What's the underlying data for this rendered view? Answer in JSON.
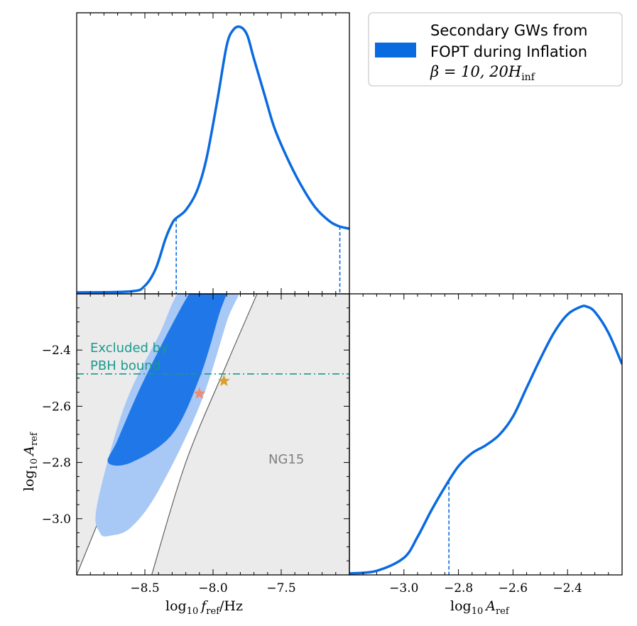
{
  "chart_data": [
    {
      "panel": "top-left",
      "type": "line",
      "title": "",
      "xlabel": "",
      "ylabel": "",
      "xlim": [
        -9.0,
        -7.0
      ],
      "color": "#0a6ae0",
      "description_series": "1D marginal posterior of log10 f_ref",
      "x": [
        -9.0,
        -8.6,
        -8.5,
        -8.42,
        -8.35,
        -8.3,
        -8.27,
        -8.2,
        -8.12,
        -8.05,
        -7.97,
        -7.9,
        -7.85,
        -7.8,
        -7.75,
        -7.7,
        -7.62,
        -7.55,
        -7.45,
        -7.35,
        -7.25,
        -7.15,
        -7.08,
        -7.0
      ],
      "y": [
        0.0,
        0.004,
        0.025,
        0.09,
        0.2,
        0.26,
        0.28,
        0.31,
        0.38,
        0.5,
        0.72,
        0.93,
        0.99,
        1.0,
        0.97,
        0.88,
        0.74,
        0.62,
        0.5,
        0.4,
        0.32,
        0.27,
        0.25,
        0.24
      ],
      "bounds_dashed": [
        -8.27,
        -7.07
      ]
    },
    {
      "panel": "bottom-left",
      "type": "contour",
      "xlabel": "log10 f_ref/Hz",
      "ylabel": "log10 A_ref",
      "xlim": [
        -9.0,
        -7.0
      ],
      "ylim": [
        -3.2,
        -2.2
      ],
      "xticks": [
        -8.5,
        -8.0,
        -7.5
      ],
      "xtick_labels": [
        "−8.5",
        "−8.0",
        "−7.5"
      ],
      "yticks": [
        -3.0,
        -2.8,
        -2.6,
        -2.4
      ],
      "ytick_labels": [
        "−3.0",
        "−2.8",
        "−2.6",
        "−2.4"
      ],
      "contours": [
        {
          "level": "68%",
          "color": "#1f77e8",
          "points": [
            [
              -8.77,
              -2.8
            ],
            [
              -8.7,
              -2.72
            ],
            [
              -8.5,
              -2.5
            ],
            [
              -8.2,
              -2.22
            ],
            [
              -8.1,
              -2.17
            ],
            [
              -7.9,
              -2.17
            ],
            [
              -7.96,
              -2.28
            ],
            [
              -8.1,
              -2.5
            ],
            [
              -8.3,
              -2.7
            ],
            [
              -8.6,
              -2.8
            ]
          ]
        },
        {
          "level": "95%",
          "color": "#a8c8f5",
          "points": [
            [
              -8.83,
              -3.05
            ],
            [
              -8.85,
              -2.95
            ],
            [
              -8.65,
              -2.6
            ],
            [
              -8.4,
              -2.35
            ],
            [
              -8.2,
              -2.17
            ],
            [
              -7.82,
              -2.17
            ],
            [
              -7.9,
              -2.3
            ],
            [
              -8.1,
              -2.6
            ],
            [
              -8.4,
              -2.9
            ],
            [
              -8.6,
              -3.03
            ],
            [
              -8.75,
              -3.06
            ]
          ]
        }
      ],
      "ng15_band": {
        "label": "NG15",
        "color": "#ebebeb",
        "upper_line": [
          [
            -9.0,
            -3.2
          ],
          [
            -8.5,
            -2.6
          ],
          [
            -8.27,
            -2.3
          ],
          [
            -8.06,
            -2.17
          ]
        ],
        "lower_line": [
          [
            -8.45,
            -3.2
          ],
          [
            -8.2,
            -2.8
          ],
          [
            -7.9,
            -2.45
          ],
          [
            -7.65,
            -2.17
          ]
        ]
      },
      "pbh_bound": {
        "y": -2.485,
        "label": "Excluded by PBH bound",
        "color": "#1a9a8e"
      },
      "stars": [
        {
          "x": -8.1,
          "y": -2.555,
          "color": "#f4896b"
        },
        {
          "x": -7.92,
          "y": -2.51,
          "color": "#d9a22a"
        }
      ],
      "ng15_label": "NG15",
      "pbh_label_line1": "Excluded by",
      "pbh_label_line2": "PBH bound"
    },
    {
      "panel": "bottom-right",
      "type": "line",
      "xlabel": "log10 A_ref",
      "xlim": [
        -3.2,
        -2.2
      ],
      "xticks": [
        -3.0,
        -2.8,
        -2.6,
        -2.4
      ],
      "xtick_labels": [
        "−3.0",
        "−2.8",
        "−2.6",
        "−2.4"
      ],
      "color": "#0a6ae0",
      "x": [
        -3.2,
        -3.1,
        -3.0,
        -2.95,
        -2.9,
        -2.85,
        -2.8,
        -2.75,
        -2.7,
        -2.65,
        -2.6,
        -2.55,
        -2.5,
        -2.45,
        -2.4,
        -2.35,
        -2.33,
        -2.3,
        -2.25,
        -2.2
      ],
      "y": [
        0.0,
        0.01,
        0.06,
        0.14,
        0.24,
        0.33,
        0.41,
        0.46,
        0.49,
        0.53,
        0.6,
        0.71,
        0.82,
        0.92,
        0.99,
        1.02,
        1.02,
        1.0,
        0.92,
        0.8
      ],
      "bound_dashed": -2.835
    }
  ],
  "legend": {
    "line1": "Secondary GWs from",
    "line2": "FOPT during Inflation",
    "beta_label": "β = 10,  20H",
    "inf_sub": "inf",
    "swatch_color": "#0a6ae0"
  },
  "labels": {
    "bottom_left_xlabel_main": "log",
    "bottom_left_xlabel_sub": "10",
    "bottom_left_xlabel_f": "f",
    "bottom_left_xlabel_ref": "ref",
    "bottom_left_xlabel_unit": "/Hz",
    "ylabel_main": "log",
    "ylabel_sub": "10",
    "ylabel_A": "A",
    "ylabel_ref": "ref",
    "bottom_right_xlabel_main": "log",
    "bottom_right_xlabel_sub": "10",
    "bottom_right_xlabel_A": "A",
    "bottom_right_xlabel_ref": "ref"
  }
}
